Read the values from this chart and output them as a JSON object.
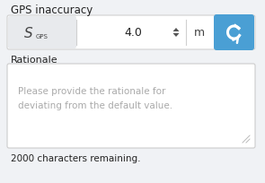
{
  "bg_color": "#f0f2f5",
  "title_text": "GPS inaccuracy",
  "title_fontsize": 8.5,
  "title_color": "#222222",
  "input_box_color": "#ffffff",
  "input_box_border": "#d0d0d0",
  "label_color": "#444444",
  "value_text": "4.0",
  "value_color": "#222222",
  "unit_text": "m",
  "unit_color": "#444444",
  "spinner_color": "#555555",
  "reset_btn_color": "#4a9fd4",
  "reset_icon_color": "#ffffff",
  "rationale_label": "Rationale",
  "rationale_label_fontsize": 8.0,
  "rationale_label_color": "#222222",
  "placeholder_text_line1": "Please provide the rationale for",
  "placeholder_text_line2": "deviating from the default value.",
  "placeholder_color": "#aaaaaa",
  "placeholder_fontsize": 7.5,
  "textarea_bg": "#ffffff",
  "textarea_border": "#cccccc",
  "footer_text": "2000 characters remaining.",
  "footer_fontsize": 7.5,
  "footer_color": "#222222",
  "label_bg": "#e8eaed",
  "fig_width": 2.95,
  "fig_height": 2.05,
  "dpi": 100
}
